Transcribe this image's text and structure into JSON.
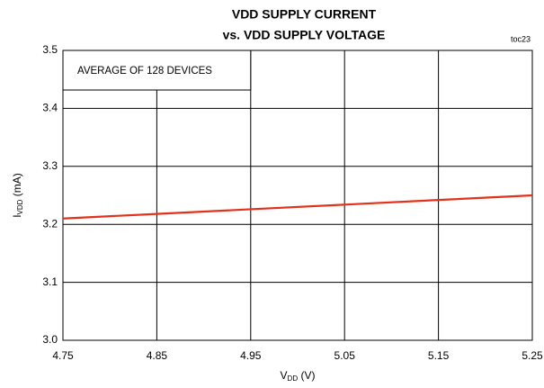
{
  "chart_data": {
    "type": "line",
    "title": [
      "VDD SUPPLY CURRENT",
      "vs. VDD SUPPLY VOLTAGE"
    ],
    "note": "toc23",
    "annotation": "AVERAGE OF 128 DEVICES",
    "xlabel": {
      "main": "V",
      "sub": "DD",
      "unit": " (V)"
    },
    "ylabel": {
      "main": "I",
      "sub": "VDD",
      "unit": " (mA)"
    },
    "x": [
      4.75,
      4.85,
      4.95,
      5.05,
      5.15,
      5.25
    ],
    "series": [
      {
        "name": "IVDD",
        "color": "#e2321b",
        "values": [
          3.21,
          3.218,
          3.226,
          3.234,
          3.242,
          3.25
        ]
      }
    ],
    "xlim": [
      4.75,
      5.25
    ],
    "xticks": [
      4.75,
      4.85,
      4.95,
      5.05,
      5.15,
      5.25
    ],
    "ylim": [
      3.0,
      3.5
    ],
    "yticks": [
      {
        "value": 3,
        "label": "3.0"
      },
      3.1,
      3.2,
      3.3,
      3.4,
      3.5
    ],
    "grid": true
  }
}
